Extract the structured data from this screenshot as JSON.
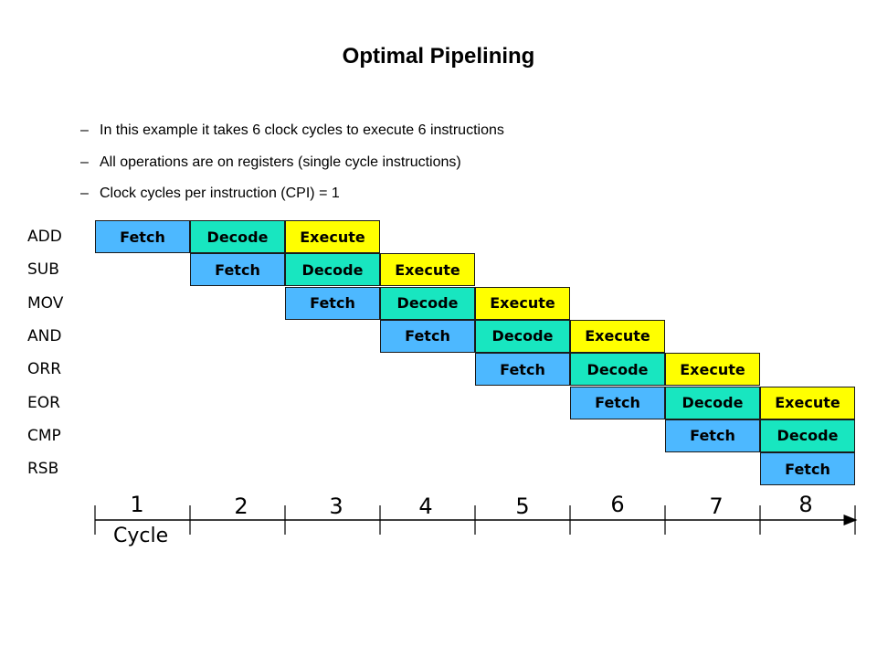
{
  "title": "Optimal Pipelining",
  "bullets": [
    {
      "marker": "–",
      "text": "In this example it takes 6 clock cycles to execute 6 instructions"
    },
    {
      "marker": "–",
      "text": "All operations are on registers (single cycle instructions)"
    },
    {
      "marker": "–",
      "text": "Clock cycles per instruction (CPI) = 1"
    }
  ],
  "stages": [
    {
      "label": "Fetch",
      "color": "#4db8ff"
    },
    {
      "label": "Decode",
      "color": "#18e6c0"
    },
    {
      "label": "Execute",
      "color": "#ffff00"
    }
  ],
  "instructions": [
    "ADD",
    "SUB",
    "MOV",
    "AND",
    "ORR",
    "EOR",
    "CMP",
    "RSB"
  ],
  "axis": {
    "cycles": [
      "1",
      "2",
      "3",
      "4",
      "5",
      "6",
      "7",
      "8"
    ],
    "label": "Cycle"
  }
}
